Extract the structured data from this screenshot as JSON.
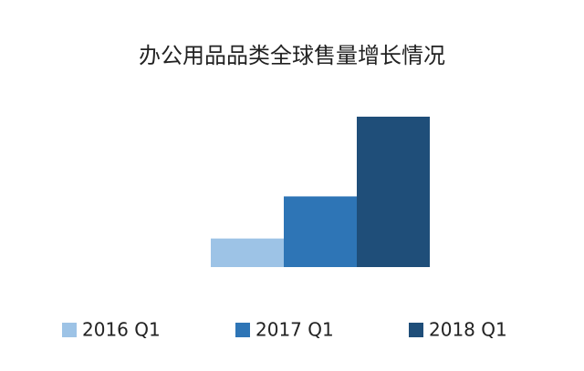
{
  "chart_data": {
    "type": "bar",
    "title": "办公用品品类全球售量增长情况",
    "categories": [
      null
    ],
    "series": [
      {
        "name": "2016 Q1",
        "color": "#9dc3e6",
        "values": [
          19
        ]
      },
      {
        "name": "2017 Q1",
        "color": "#2e75b6",
        "values": [
          47
        ]
      },
      {
        "name": "2018 Q1",
        "color": "#1f4e79",
        "values": [
          100
        ]
      }
    ],
    "ylim": [
      0,
      100
    ],
    "legend": "bottom"
  }
}
